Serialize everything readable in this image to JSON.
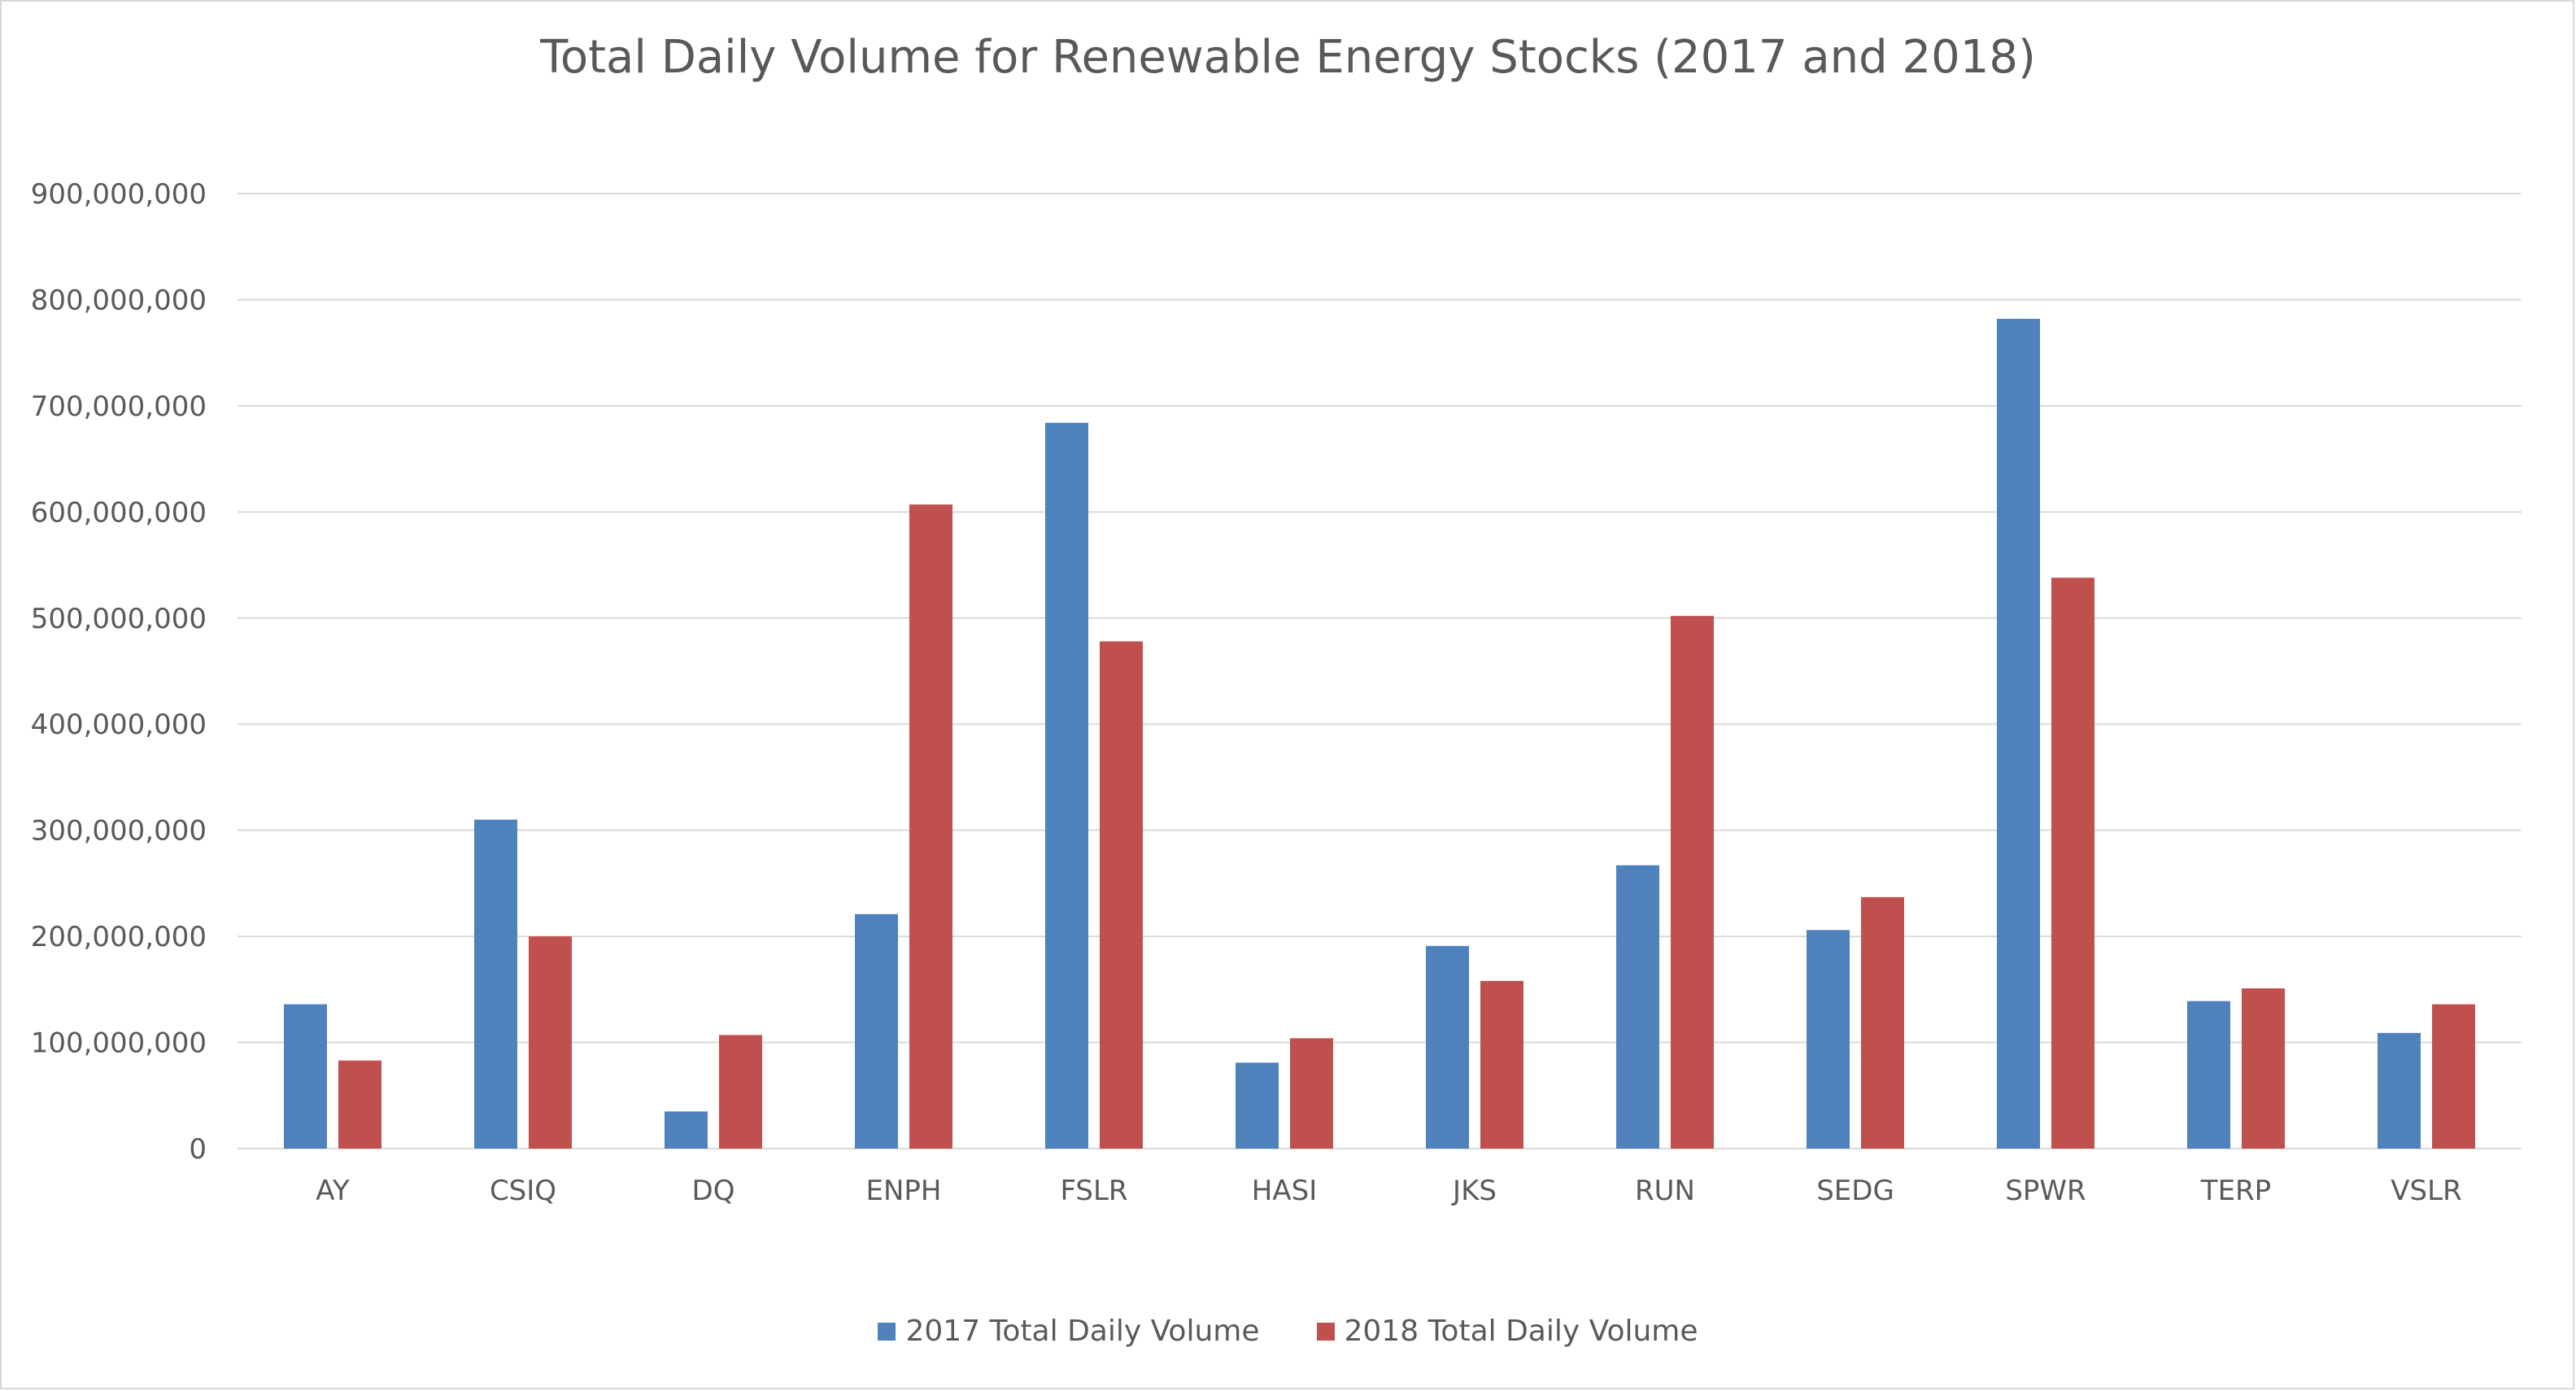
{
  "chart_data": {
    "type": "bar",
    "title": "Total Daily Volume for Renewable Energy Stocks (2017 and 2018)",
    "xlabel": "",
    "ylabel": "",
    "categories": [
      "AY",
      "CSIQ",
      "DQ",
      "ENPH",
      "FSLR",
      "HASI",
      "JKS",
      "RUN",
      "SEDG",
      "SPWR",
      "TERP",
      "VSLR"
    ],
    "series": [
      {
        "name": "2017 Total Daily Volume",
        "color": "#4f81bd",
        "values": [
          136000000,
          310000000,
          35000000,
          221000000,
          684000000,
          81000000,
          191000000,
          267000000,
          206000000,
          782000000,
          139000000,
          109000000
        ]
      },
      {
        "name": "2018 Total Daily Volume",
        "color": "#c0504d",
        "values": [
          83000000,
          200000000,
          107000000,
          607000000,
          478000000,
          104000000,
          158000000,
          502000000,
          237000000,
          538000000,
          151000000,
          136000000
        ]
      }
    ],
    "ylim": [
      0,
      900000000
    ],
    "yticks": [
      "0",
      "100,000,000",
      "200,000,000",
      "300,000,000",
      "400,000,000",
      "500,000,000",
      "600,000,000",
      "700,000,000",
      "800,000,000",
      "900,000,000"
    ],
    "grid": true,
    "legend_position": "bottom"
  }
}
